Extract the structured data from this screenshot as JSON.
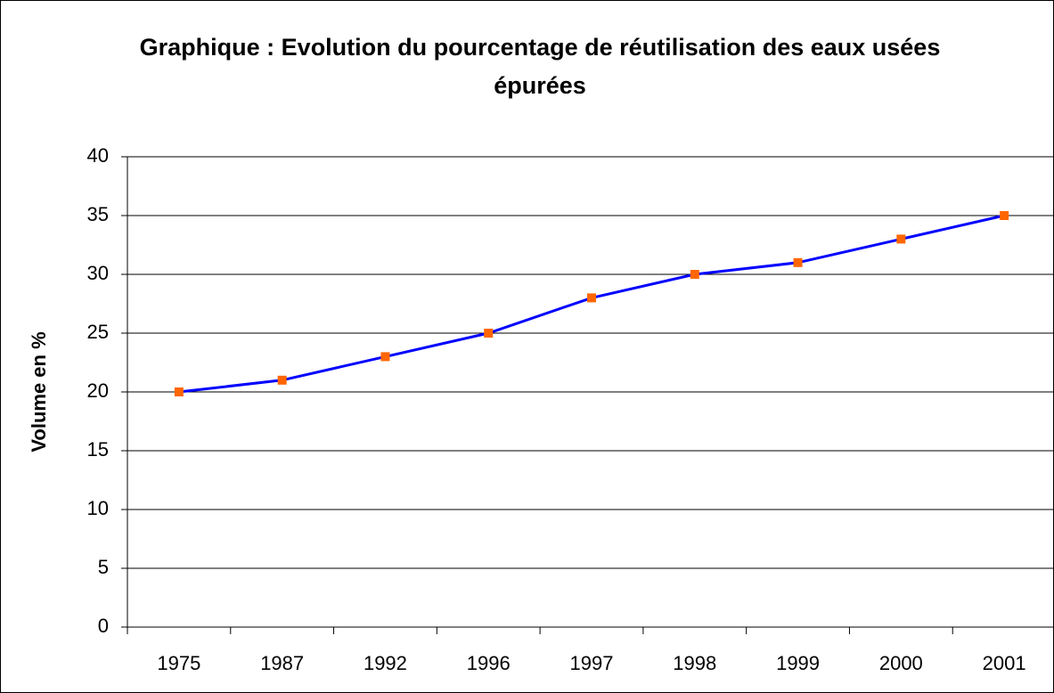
{
  "chart_data": {
    "type": "line",
    "title": "Graphique : Evolution du pourcentage de réutilisation des eaux usées épurées",
    "y_label": "Volume en %",
    "categories": [
      "1975",
      "1987",
      "1992",
      "1996",
      "1997",
      "1998",
      "1999",
      "2000",
      "2001"
    ],
    "series": [
      {
        "color": "#0000ff",
        "marker_color": "#ff6600",
        "values": [
          20,
          21,
          23,
          25,
          28,
          30,
          31,
          33,
          35
        ]
      }
    ],
    "ylim": [
      0,
      40
    ],
    "yticks": [
      0,
      5,
      10,
      15,
      20,
      25,
      30,
      35,
      40
    ],
    "grid": true
  }
}
